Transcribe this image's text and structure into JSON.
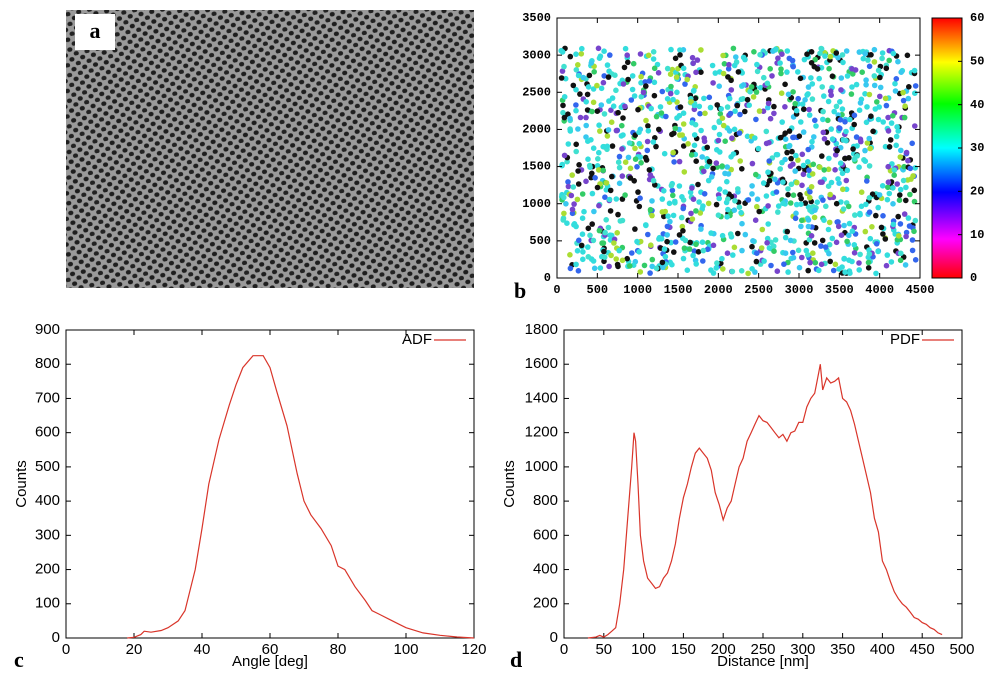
{
  "image": {
    "label": "a"
  },
  "chart_data": [
    {
      "type": "scatter",
      "label": "b",
      "xlim": [
        0,
        4500
      ],
      "xticks": [
        0,
        500,
        1000,
        1500,
        2000,
        2500,
        3000,
        3500,
        4000,
        4500
      ],
      "ylim": [
        0,
        3500
      ],
      "yticks": [
        0,
        500,
        1000,
        1500,
        2000,
        2500,
        3000,
        3500
      ],
      "colorbar": {
        "lim": [
          0,
          60
        ],
        "ticks": [
          0,
          10,
          20,
          30,
          40,
          50,
          60
        ]
      }
    },
    {
      "type": "line",
      "label": "c",
      "xlabel": "Angle [deg]",
      "ylabel": "Counts",
      "grid": false,
      "legend": "upper right",
      "xlim": [
        0,
        120
      ],
      "xticks": [
        0,
        20,
        40,
        60,
        80,
        100,
        120
      ],
      "ylim": [
        0,
        900
      ],
      "yticks": [
        0,
        100,
        200,
        300,
        400,
        500,
        600,
        700,
        800,
        900
      ],
      "x": [
        18,
        20,
        22,
        23,
        25,
        28,
        30,
        33,
        35,
        38,
        40,
        42,
        45,
        48,
        50,
        52,
        55,
        58,
        60,
        62,
        65,
        68,
        70,
        72,
        75,
        78,
        80,
        82,
        85,
        88,
        90,
        92,
        95,
        98,
        100,
        105,
        110,
        115,
        120
      ],
      "series": [
        {
          "name": "ADF",
          "color": "#d9352a",
          "values": [
            0,
            2,
            10,
            20,
            17,
            22,
            30,
            50,
            80,
            200,
            320,
            450,
            580,
            680,
            740,
            790,
            825,
            825,
            790,
            720,
            620,
            480,
            400,
            360,
            320,
            270,
            210,
            200,
            150,
            110,
            80,
            70,
            55,
            40,
            30,
            15,
            8,
            3,
            0
          ]
        }
      ]
    },
    {
      "type": "line",
      "label": "d",
      "xlabel": "Distance [nm]",
      "ylabel": "Counts",
      "grid": false,
      "legend": "upper right",
      "xlim": [
        0,
        500
      ],
      "xticks": [
        0,
        50,
        100,
        150,
        200,
        250,
        300,
        350,
        400,
        450,
        500
      ],
      "ylim": [
        0,
        1800
      ],
      "yticks": [
        0,
        200,
        400,
        600,
        800,
        1000,
        1200,
        1400,
        1600,
        1800
      ],
      "x": [
        30,
        40,
        45,
        50,
        55,
        60,
        65,
        70,
        75,
        80,
        85,
        88,
        90,
        93,
        96,
        100,
        105,
        110,
        115,
        120,
        125,
        130,
        135,
        140,
        145,
        150,
        155,
        160,
        165,
        170,
        175,
        180,
        185,
        190,
        195,
        200,
        205,
        210,
        215,
        220,
        225,
        230,
        235,
        240,
        245,
        250,
        255,
        260,
        265,
        270,
        275,
        280,
        285,
        290,
        295,
        300,
        305,
        310,
        315,
        320,
        322,
        325,
        330,
        335,
        340,
        345,
        350,
        355,
        360,
        365,
        370,
        375,
        380,
        385,
        390,
        395,
        400,
        405,
        410,
        415,
        420,
        425,
        430,
        435,
        440,
        445,
        450,
        455,
        460,
        465,
        470,
        475
      ],
      "series": [
        {
          "name": "PDF",
          "color": "#d9352a",
          "values": [
            0,
            5,
            15,
            5,
            20,
            40,
            60,
            200,
            400,
            700,
            1000,
            1200,
            1150,
            900,
            600,
            450,
            350,
            320,
            290,
            300,
            350,
            380,
            450,
            550,
            700,
            820,
            900,
            1000,
            1080,
            1110,
            1080,
            1050,
            980,
            850,
            780,
            690,
            760,
            800,
            900,
            1000,
            1050,
            1150,
            1200,
            1250,
            1300,
            1270,
            1260,
            1230,
            1200,
            1170,
            1190,
            1150,
            1200,
            1210,
            1260,
            1260,
            1350,
            1400,
            1430,
            1550,
            1600,
            1450,
            1520,
            1490,
            1500,
            1520,
            1400,
            1380,
            1330,
            1250,
            1150,
            1050,
            950,
            850,
            700,
            620,
            450,
            400,
            330,
            270,
            230,
            200,
            180,
            150,
            120,
            110,
            90,
            80,
            60,
            50,
            30,
            20
          ]
        }
      ]
    }
  ]
}
